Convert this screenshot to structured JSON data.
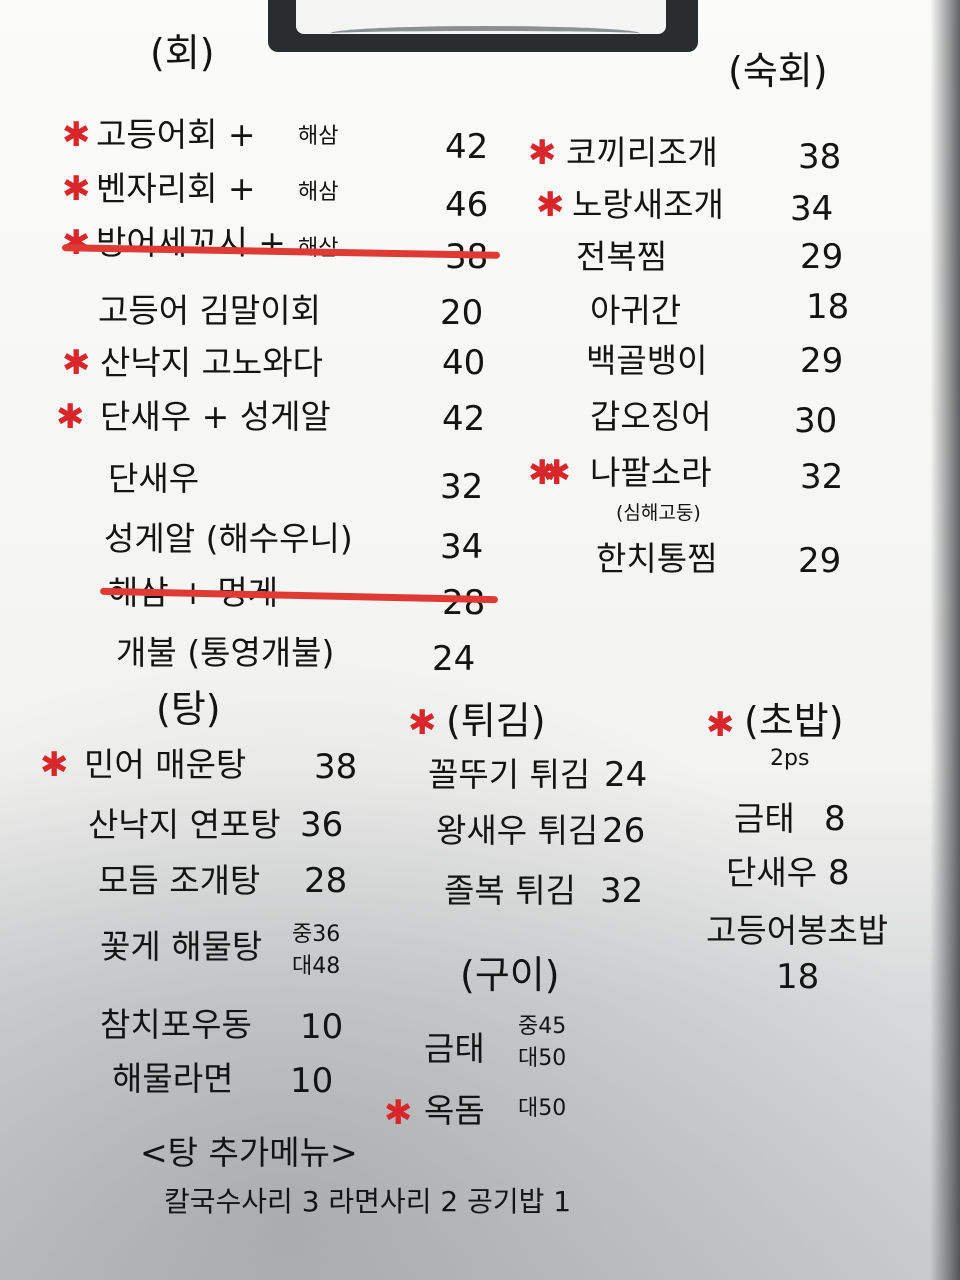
{
  "colors": {
    "ink": "#141414",
    "star": "#d8262b",
    "strike": "#e03a34"
  },
  "icons": {
    "star": "star-icon"
  },
  "hoe": {
    "heading": "(회)",
    "items": [
      {
        "name": "고등어회 +",
        "extra": "해삼",
        "price": "42"
      },
      {
        "name": "벤자리회 +",
        "extra": "해삼",
        "price": "46"
      },
      {
        "name": "방어세꼬시 +",
        "extra": "해삼",
        "price": "38"
      },
      {
        "name": "고등어 김말이회",
        "price": "20"
      },
      {
        "name": "산낙지 고노와다",
        "price": "40"
      },
      {
        "name": "단새우 + 성게알",
        "price": "42"
      },
      {
        "name": "단새우",
        "price": "32"
      },
      {
        "name": "성게알 (해수우니)",
        "price": "34"
      },
      {
        "name": "해삼 + 멍게",
        "price": "28"
      },
      {
        "name": "개불 (통영개불)",
        "price": "24"
      }
    ]
  },
  "sukhoe": {
    "heading": "(숙회)",
    "items": [
      {
        "name": "코끼리조개",
        "price": "38"
      },
      {
        "name": "노랑새조개",
        "price": "34"
      },
      {
        "name": "전복찜",
        "price": "29"
      },
      {
        "name": "아귀간",
        "price": "18"
      },
      {
        "name": "백골뱅이",
        "price": "29"
      },
      {
        "name": "갑오징어",
        "price": "30"
      },
      {
        "name": "나팔소라",
        "price": "32",
        "note": "(심해고둥)"
      },
      {
        "name": "한치통찜",
        "price": "29"
      }
    ]
  },
  "tang": {
    "heading": "(탕)",
    "items": [
      {
        "name": "민어 매운탕",
        "price": "38"
      },
      {
        "name": "산낙지 연포탕",
        "price": "36"
      },
      {
        "name": "모듬 조개탕",
        "price": "28"
      },
      {
        "name": "꽃게 해물탕",
        "price_mid": "중36",
        "price_large": "대48"
      },
      {
        "name": "참치포우동",
        "price": "10"
      },
      {
        "name": "해물라면",
        "price": "10"
      }
    ],
    "extra_heading": "<탕 추가메뉴>",
    "extra_items": "칼국수사리 3   라면사리 2   공기밥 1"
  },
  "twigim": {
    "heading": "(튀김)",
    "items": [
      {
        "name": "꼴뚜기 튀김",
        "price": "24"
      },
      {
        "name": "왕새우 튀김",
        "price": "26"
      },
      {
        "name": "졸복 튀김",
        "price": "32"
      }
    ]
  },
  "gui": {
    "heading": "(구이)",
    "items": [
      {
        "name": "금태",
        "price_mid": "중45",
        "price_large": "대50"
      },
      {
        "name": "옥돔",
        "price_large": "대50"
      }
    ]
  },
  "chobap": {
    "heading": "(초밥)",
    "note": "2ps",
    "items": [
      {
        "name": "금태",
        "price": "8"
      },
      {
        "name": "단새우",
        "price": "8"
      },
      {
        "name": "고등어봉초밥",
        "price": "18"
      }
    ]
  }
}
